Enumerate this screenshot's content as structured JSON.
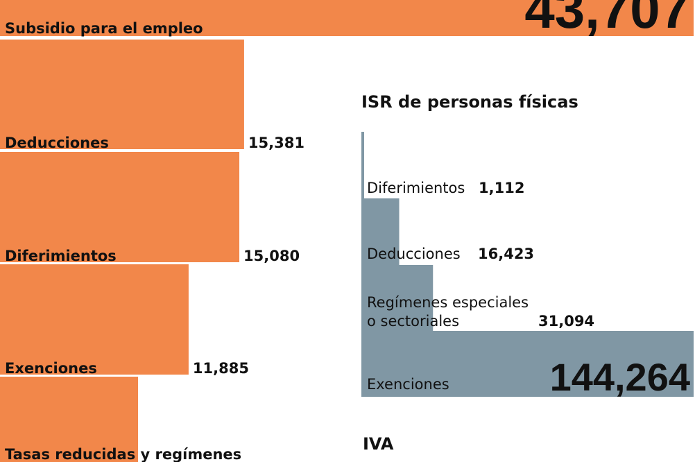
{
  "colors": {
    "orange": "#f2874a",
    "gray": "#8097a4",
    "text": "#111111"
  },
  "chart_data": [
    {
      "type": "bar",
      "orientation": "horizontal",
      "categories": [
        "Subsidio para el empleo",
        "Deducciones",
        "Diferimientos",
        "Exenciones",
        "Tasas reducidas y regímenes"
      ],
      "values": [
        43707,
        15381,
        15080,
        11885,
        null
      ],
      "value_labels": [
        "43,707",
        "15,381",
        "15,080",
        "11,885",
        ""
      ],
      "color": "#f2874a"
    },
    {
      "type": "bar",
      "orientation": "horizontal-stepped",
      "title": "ISR de personas físicas",
      "categories": [
        "Diferimientos",
        "Deducciones",
        "Regímenes especiales o sectoriales",
        "Exenciones"
      ],
      "category_lines": [
        [
          "Diferimientos"
        ],
        [
          "Deducciones"
        ],
        [
          "Regímenes especiales",
          "o sectoriales"
        ],
        [
          "Exenciones"
        ]
      ],
      "values": [
        1112,
        16423,
        31094,
        144264
      ],
      "value_labels": [
        "1,112",
        "16,423",
        "31,094",
        "144,264"
      ],
      "color": "#8097a4"
    }
  ],
  "next_section_title": "IVA"
}
